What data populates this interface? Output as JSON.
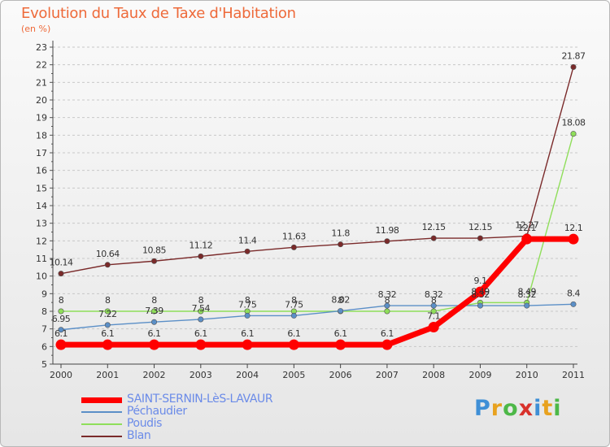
{
  "title": "Evolution du Taux de Taxe d'Habitation",
  "subtitle": "(en %)",
  "logo": [
    "P",
    "r",
    "o",
    "x",
    "i",
    "t",
    "i"
  ],
  "chart_data": {
    "type": "line",
    "title": "Evolution du Taux de Taxe d'Habitation",
    "ylabel": "(en %)",
    "xlabel": "",
    "x": [
      "2000",
      "2001",
      "2002",
      "2003",
      "2004",
      "2005",
      "2006",
      "2007",
      "2008",
      "2009",
      "2010",
      "2011"
    ],
    "ylim": [
      5,
      23
    ],
    "yticks": [
      5,
      6,
      7,
      8,
      9,
      10,
      11,
      12,
      13,
      14,
      15,
      16,
      17,
      18,
      19,
      20,
      21,
      22,
      23
    ],
    "grid": "horizontal dashed",
    "legend_position": "bottom-left",
    "series": [
      {
        "name": "SAINT-SERNIN-LèS-LAVAUR",
        "color": "#ff0000",
        "values": [
          6.1,
          6.1,
          6.1,
          6.1,
          6.1,
          6.1,
          6.1,
          6.1,
          7.1,
          9.1,
          12.1,
          12.1
        ],
        "labels": [
          "6.1",
          "6.1",
          "6.1",
          "6.1",
          "6.1",
          "6.1",
          "6.1",
          "6.1",
          "7.1",
          "9.1",
          "12.1",
          "12.1"
        ]
      },
      {
        "name": "Péchaudier",
        "color": "#5b8fc7",
        "values": [
          6.95,
          7.22,
          7.39,
          7.54,
          7.75,
          7.75,
          8.02,
          8.32,
          8.32,
          8.32,
          8.32,
          8.4
        ],
        "labels": [
          "6.95",
          "7.22",
          "7.39",
          "7.54",
          "7.75",
          "7.75",
          "8.02",
          "8.32",
          "8.32",
          "8.32",
          "8.32",
          "8.4"
        ]
      },
      {
        "name": "Poudis",
        "color": "#8fde5a",
        "values": [
          8,
          8,
          8,
          8,
          8,
          8,
          8,
          8,
          8,
          8.49,
          8.49,
          18.08
        ],
        "labels": [
          "8",
          "8",
          "8",
          "8",
          "8",
          "8",
          "8",
          "8",
          "8",
          "8.49",
          "8.49",
          "18.08"
        ]
      },
      {
        "name": "Blan",
        "color": "#7a2a2a",
        "values": [
          10.14,
          10.64,
          10.85,
          11.12,
          11.4,
          11.63,
          11.8,
          11.98,
          12.15,
          12.15,
          12.27,
          21.87
        ],
        "labels": [
          "10.14",
          "10.64",
          "10.85",
          "11.12",
          "11.4",
          "11.63",
          "11.8",
          "11.98",
          "12.15",
          "12.15",
          "12.27",
          "21.87"
        ]
      }
    ]
  }
}
